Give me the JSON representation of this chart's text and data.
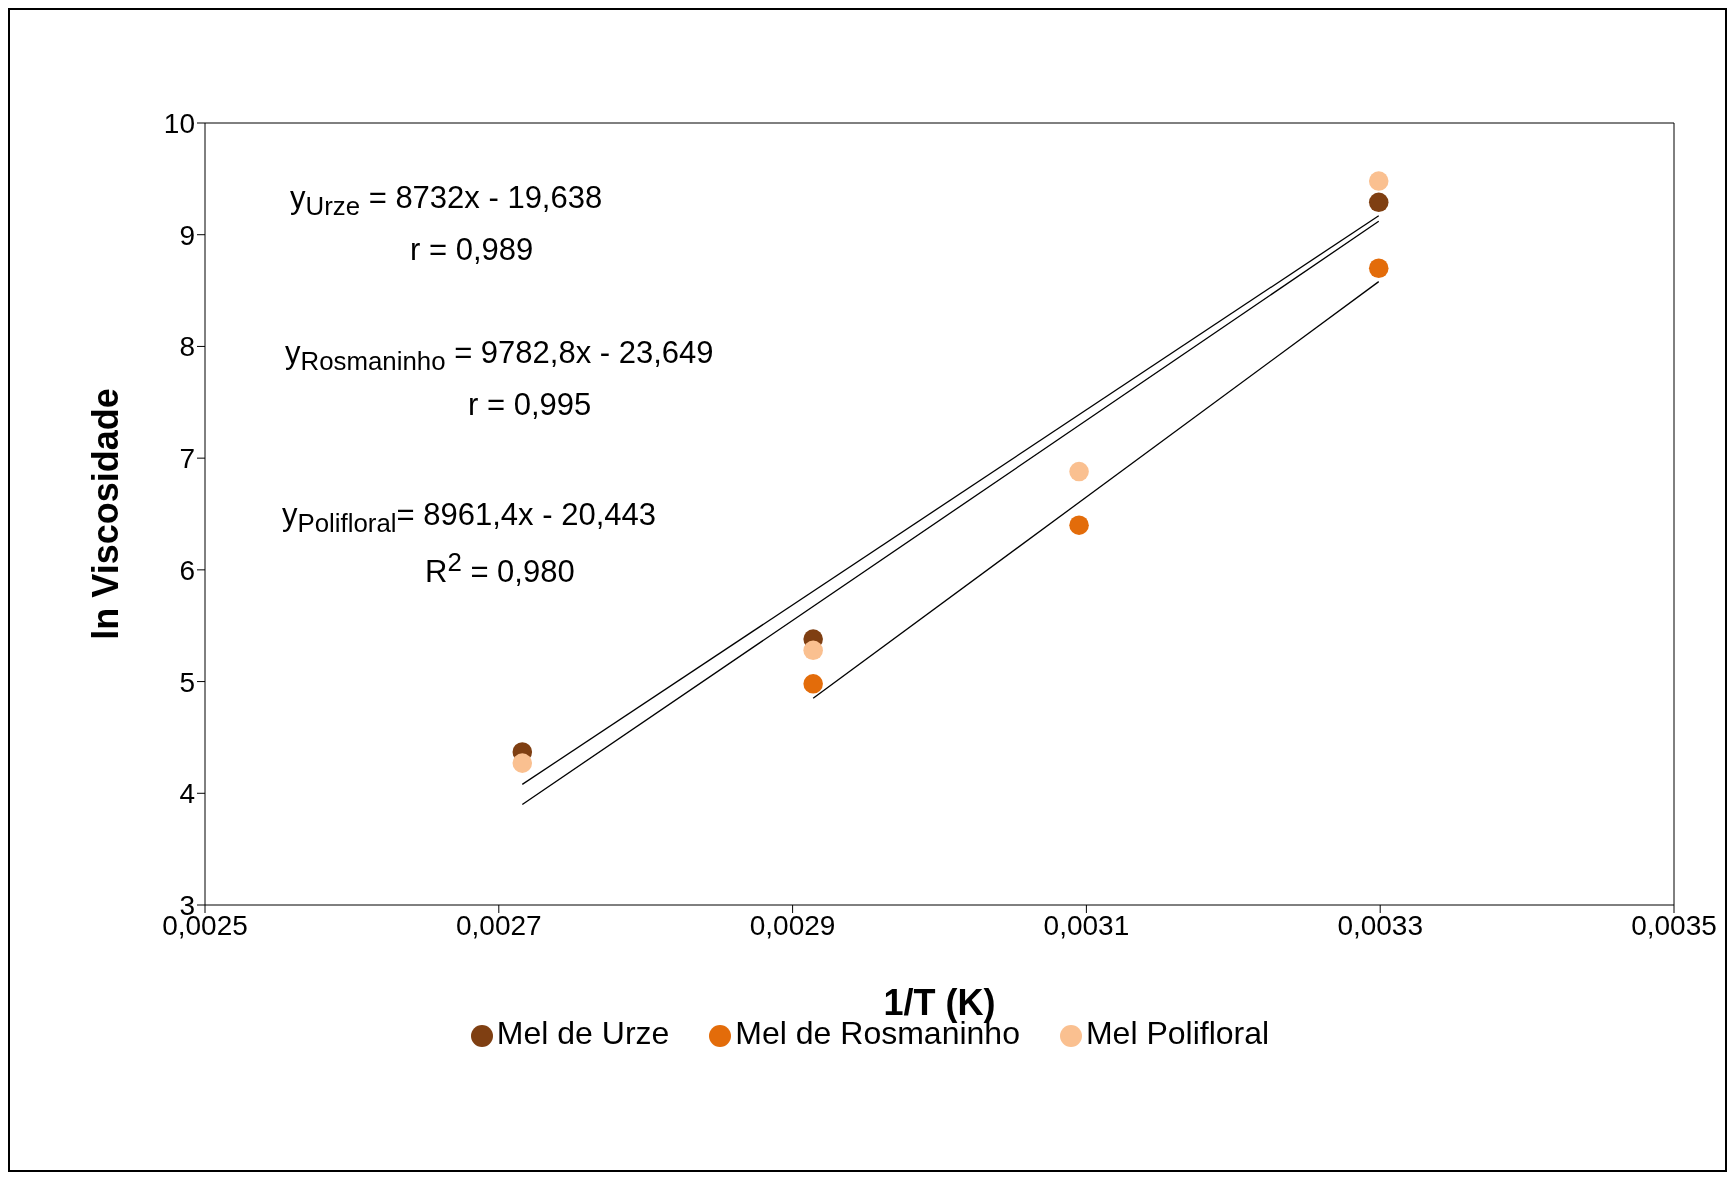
{
  "chart_data": {
    "type": "scatter",
    "xlabel": "1/T (K)",
    "ylabel": "ln Viscosidade",
    "xlim": [
      0.0025,
      0.0035
    ],
    "xticks": [
      {
        "value": 0.0025,
        "label": "0,0025"
      },
      {
        "value": 0.0027,
        "label": "0,0027"
      },
      {
        "value": 0.0029,
        "label": "0,0029"
      },
      {
        "value": 0.0031,
        "label": "0,0031"
      },
      {
        "value": 0.0033,
        "label": "0,0033"
      },
      {
        "value": 0.0035,
        "label": "0,0035"
      }
    ],
    "ylim": [
      3,
      10
    ],
    "yticks": [
      3,
      4,
      5,
      6,
      7,
      8,
      9,
      10
    ],
    "grid": false,
    "legend": "bottom",
    "marker": "circle",
    "x": [
      0.002716,
      0.002914,
      0.003095,
      0.003299
    ],
    "series": [
      {
        "name": "Mel de Urze",
        "color": "#7f3f12",
        "values": [
          4.37,
          5.38,
          null,
          9.29
        ]
      },
      {
        "name": "Mel de Rosmaninho",
        "color": "#e36c0a",
        "values": [
          null,
          4.98,
          6.4,
          8.7
        ]
      },
      {
        "name": "Mel Polifloral",
        "color": "#fac090",
        "values": [
          4.27,
          5.28,
          6.88,
          9.48
        ]
      },
      {
        "type": "line",
        "marker": "none",
        "color": "#000000",
        "x": [
          0.002716,
          0.003299
        ],
        "values": [
          4.08,
          9.17
        ]
      },
      {
        "type": "line",
        "marker": "none",
        "color": "#000000",
        "x": [
          0.002914,
          0.003299
        ],
        "values": [
          4.85,
          8.58
        ]
      },
      {
        "type": "line",
        "marker": "none",
        "color": "#000000",
        "x": [
          0.002716,
          0.003299
        ],
        "values": [
          3.9,
          9.12
        ]
      }
    ],
    "annotations": [
      "y$_{Urze}$ = 8732x - 19,638",
      "r = 0,989",
      "y$_{Rosmaninho}$ = 9782,8x - 23,649",
      "r = 0,995",
      "y$_{Polifloral}$= 8961,4x - 20,443",
      "R$^{2}$ = 0,980"
    ]
  }
}
